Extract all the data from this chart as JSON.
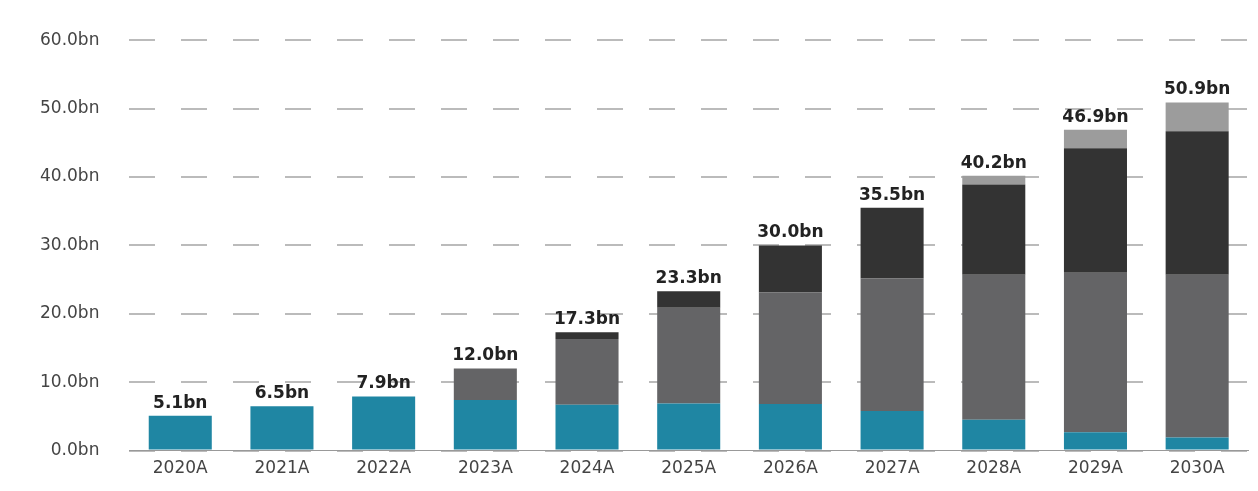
{
  "chart_data": {
    "type": "bar",
    "stacked": true,
    "categories": [
      "2020A",
      "2021A",
      "2022A",
      "2023A",
      "2024A",
      "2025A",
      "2026A",
      "2027A",
      "2028A",
      "2029A",
      "2030A"
    ],
    "series": [
      {
        "color": "#1f86a3",
        "values": [
          5.1,
          6.5,
          7.9,
          7.4,
          6.7,
          6.9,
          6.8,
          5.8,
          4.5,
          2.7,
          1.9
        ]
      },
      {
        "color": "#646466",
        "values": [
          null,
          null,
          null,
          4.6,
          9.6,
          14.0,
          16.3,
          19.4,
          21.2,
          23.3,
          23.8
        ]
      },
      {
        "color": "#333333",
        "values": [
          null,
          null,
          null,
          null,
          1.0,
          2.4,
          6.9,
          10.3,
          13.2,
          18.2,
          21.0
        ]
      },
      {
        "color": "#9c9c9c",
        "values": [
          null,
          null,
          null,
          null,
          null,
          null,
          null,
          null,
          1.3,
          2.7,
          4.2
        ]
      }
    ],
    "totals": [
      "5.1bn",
      "6.5bn",
      "7.9bn",
      "12.0bn",
      "17.3bn",
      "23.3bn",
      "30.0bn",
      "35.5bn",
      "40.2bn",
      "46.9bn",
      "50.9bn"
    ],
    "ylim": [
      0,
      60
    ],
    "yticks": [
      {
        "value": 0,
        "label": "0.0bn"
      },
      {
        "value": 10,
        "label": "10.0bn"
      },
      {
        "value": 20,
        "label": "20.0bn"
      },
      {
        "value": 30,
        "label": "30.0bn"
      },
      {
        "value": 40,
        "label": "40.0bn"
      },
      {
        "value": 50,
        "label": "50.0bn"
      },
      {
        "value": 60,
        "label": "60.0bn"
      }
    ],
    "grid": "y",
    "legend": false
  }
}
